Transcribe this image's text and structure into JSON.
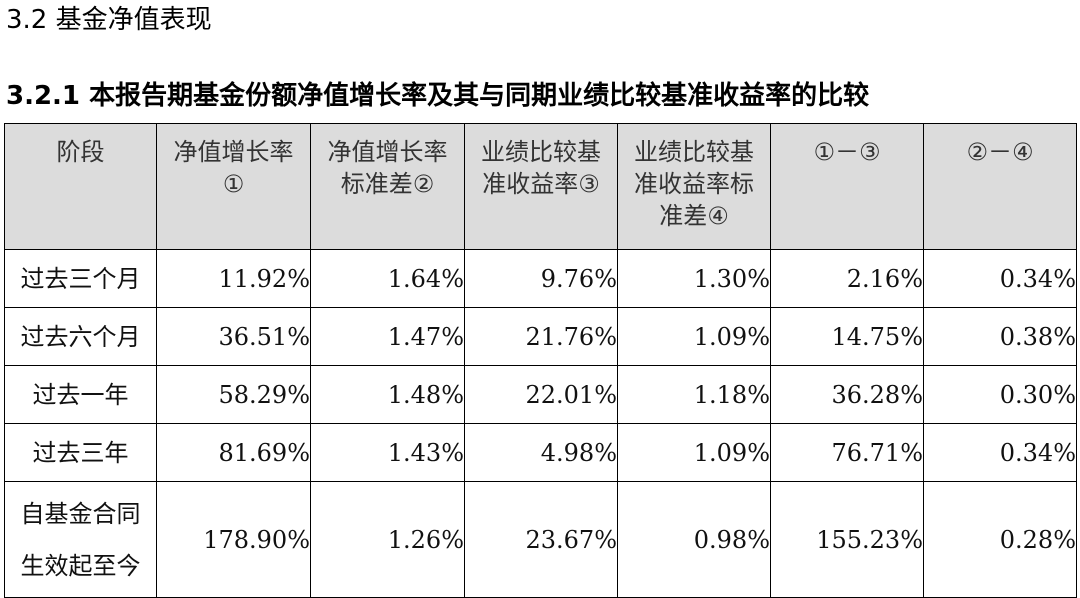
{
  "section_title": "3.2 基金净值表现",
  "subsection_title": "3.2.1 本报告期基金份额净值增长率及其与同期业绩比较基准收益率的比较",
  "table": {
    "headers": [
      [
        "阶段"
      ],
      [
        "净值增长率",
        "①"
      ],
      [
        "净值增长率",
        "标准差②"
      ],
      [
        "业绩比较基",
        "准收益率③"
      ],
      [
        "业绩比较基",
        "准收益率标",
        "准差④"
      ],
      [
        "①－③"
      ],
      [
        "②－④"
      ]
    ],
    "rows": [
      {
        "label": [
          "过去三个月"
        ],
        "values": [
          "11.92%",
          "1.64%",
          "9.76%",
          "1.30%",
          "2.16%",
          "0.34%"
        ]
      },
      {
        "label": [
          "过去六个月"
        ],
        "values": [
          "36.51%",
          "1.47%",
          "21.76%",
          "1.09%",
          "14.75%",
          "0.38%"
        ]
      },
      {
        "label": [
          "过去一年"
        ],
        "values": [
          "58.29%",
          "1.48%",
          "22.01%",
          "1.18%",
          "36.28%",
          "0.30%"
        ]
      },
      {
        "label": [
          "过去三年"
        ],
        "values": [
          "81.69%",
          "1.43%",
          "4.98%",
          "1.09%",
          "76.71%",
          "0.34%"
        ]
      },
      {
        "label": [
          "自基金合同",
          "生效起至今"
        ],
        "values": [
          "178.90%",
          "1.26%",
          "23.67%",
          "0.98%",
          "155.23%",
          "0.28%"
        ]
      }
    ]
  }
}
